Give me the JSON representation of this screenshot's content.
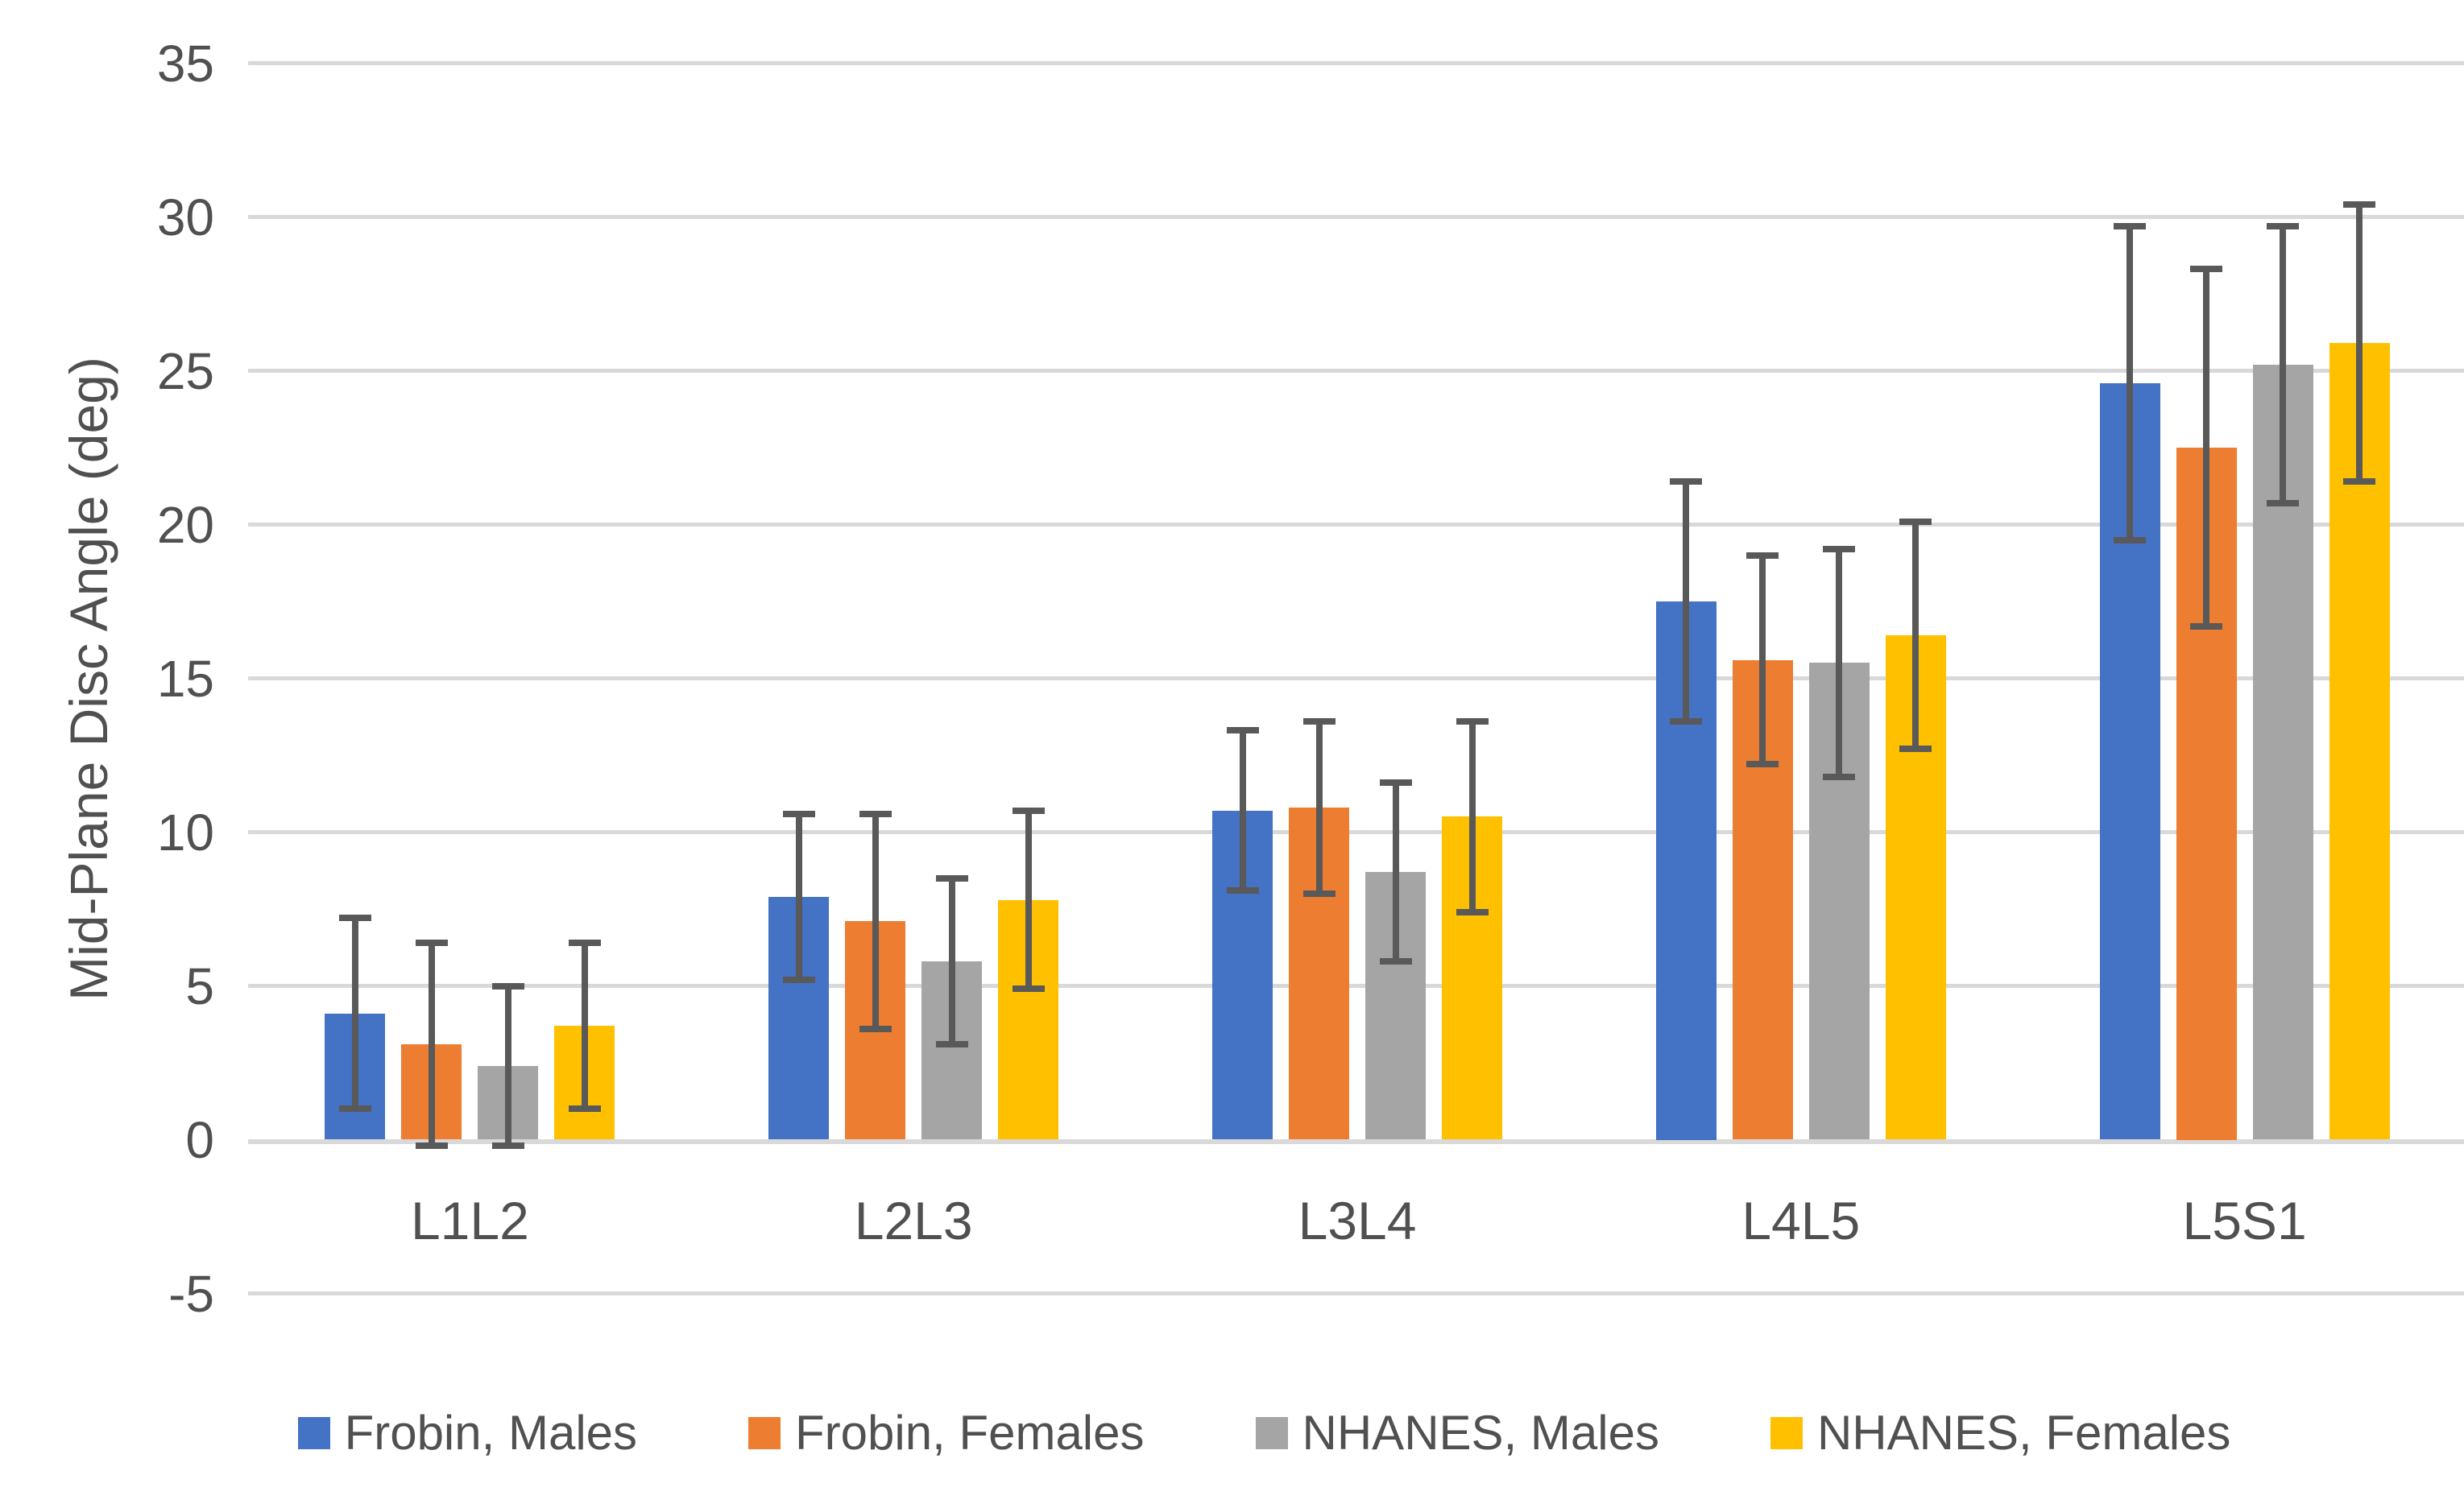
{
  "chart_data": {
    "type": "bar",
    "title": "",
    "xlabel": "",
    "ylabel": "Mid-Plane Disc Angle (deg)",
    "categories": [
      "L1L2",
      "L2L3",
      "L3L4",
      "L4L5",
      "L5S1"
    ],
    "series": [
      {
        "name": "Frobin, Males",
        "color": "#4472C4",
        "values": [
          4.1,
          7.9,
          10.7,
          17.5,
          24.6
        ],
        "errors": [
          3.1,
          2.7,
          2.6,
          3.9,
          5.1
        ]
      },
      {
        "name": "Frobin, Females",
        "color": "#ED7D31",
        "values": [
          3.1,
          7.1,
          10.8,
          15.6,
          22.5
        ],
        "errors": [
          3.3,
          3.5,
          2.8,
          3.4,
          5.8
        ]
      },
      {
        "name": "NHANES, Males",
        "color": "#A5A5A5",
        "values": [
          2.4,
          5.8,
          8.7,
          15.5,
          25.2
        ],
        "errors": [
          2.6,
          2.7,
          2.9,
          3.7,
          4.5
        ]
      },
      {
        "name": "NHANES, Females",
        "color": "#FFC000",
        "values": [
          3.7,
          7.8,
          10.5,
          16.4,
          25.9
        ],
        "errors": [
          2.7,
          2.9,
          3.1,
          3.7,
          4.5
        ]
      }
    ],
    "ylim": [
      -5,
      35
    ],
    "yticks": [
      35,
      30,
      25,
      20,
      15,
      10,
      5,
      0,
      -5
    ],
    "ytick_step": 5,
    "grid": true,
    "error_bars": true,
    "legend_position": "bottom",
    "style": {
      "background": "#FFFFFF",
      "gridline_color": "#D9D9D9",
      "errorbar_color": "#595959",
      "text_color": "#505050"
    }
  }
}
